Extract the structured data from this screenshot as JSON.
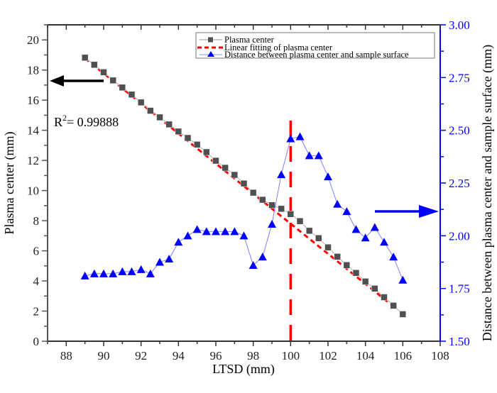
{
  "chart_data": {
    "type": "line",
    "xlabel": "LTSD (mm)",
    "ylabel_left": "Plasma center (mm)",
    "ylabel_right": "Distance between plasma center and sample surface (mm)",
    "xlim": [
      87,
      108
    ],
    "ylim_left": [
      0,
      21
    ],
    "ylim_right": [
      1.5,
      3.0
    ],
    "x_ticks": [
      "88",
      "90",
      "92",
      "94",
      "96",
      "98",
      "100",
      "102",
      "104",
      "106",
      "108"
    ],
    "y_left_ticks": [
      "0",
      "2",
      "4",
      "6",
      "8",
      "10",
      "12",
      "14",
      "16",
      "18",
      "20"
    ],
    "y_right_ticks": [
      "1.50",
      "1.75",
      "2.00",
      "2.25",
      "2.50",
      "2.75",
      "3.00"
    ],
    "grid": false,
    "legend_position": "top-right",
    "x": [
      89,
      89.5,
      90,
      90.5,
      91,
      91.5,
      92,
      92.5,
      93,
      93.5,
      94,
      94.5,
      95,
      95.5,
      96,
      96.5,
      97,
      97.5,
      98,
      98.5,
      99,
      99.5,
      100,
      100.5,
      101,
      101.5,
      102,
      102.5,
      103,
      103.5,
      104,
      104.5,
      105,
      105.5,
      106
    ],
    "series": [
      {
        "name": "Plasma center",
        "axis": "left",
        "color": "#505050",
        "marker": "square",
        "values": [
          18.82,
          18.35,
          17.85,
          17.31,
          16.84,
          16.37,
          15.85,
          15.3,
          14.86,
          14.39,
          13.92,
          13.49,
          13.05,
          12.55,
          11.98,
          11.51,
          11.04,
          10.47,
          9.86,
          9.39,
          9.03,
          8.79,
          8.44,
          7.97,
          7.33,
          6.84,
          6.23,
          5.61,
          5.05,
          4.53,
          3.96,
          3.49,
          2.92,
          2.36,
          1.79
        ]
      },
      {
        "name": "Linear fitting of plasma center",
        "axis": "left",
        "color": "#ff0000",
        "style": "dashed",
        "x_range": [
          89,
          105.5
        ],
        "intercept": 107.6,
        "slope": -0.998
      },
      {
        "name": "Distance between plasma center and sample surface",
        "axis": "right",
        "color": "#0000ff",
        "marker": "triangle",
        "values": [
          1.81,
          1.82,
          1.82,
          1.82,
          1.83,
          1.83,
          1.84,
          1.82,
          1.875,
          1.89,
          1.97,
          2.0,
          2.03,
          2.02,
          2.02,
          2.02,
          2.02,
          2.0,
          1.86,
          1.9,
          2.055,
          2.29,
          2.46,
          2.47,
          2.38,
          2.38,
          2.28,
          2.15,
          2.115,
          2.03,
          1.99,
          2.04,
          1.97,
          1.9,
          1.79
        ]
      }
    ],
    "vertical_line": {
      "x": 100,
      "color": "#ff0000",
      "style": "dashed"
    },
    "annotations": {
      "r2_prefix": "R",
      "r2_sup": "2",
      "r2_value": "= 0.99888",
      "left_arrow": "points-to-left-axis",
      "right_arrow": "points-to-right-axis"
    },
    "colors": {
      "axis_left": "#555555",
      "axis_right": "#0000ff",
      "fit": "#ff0000",
      "arrow_left": "#000000",
      "arrow_right": "#0000ff"
    }
  }
}
